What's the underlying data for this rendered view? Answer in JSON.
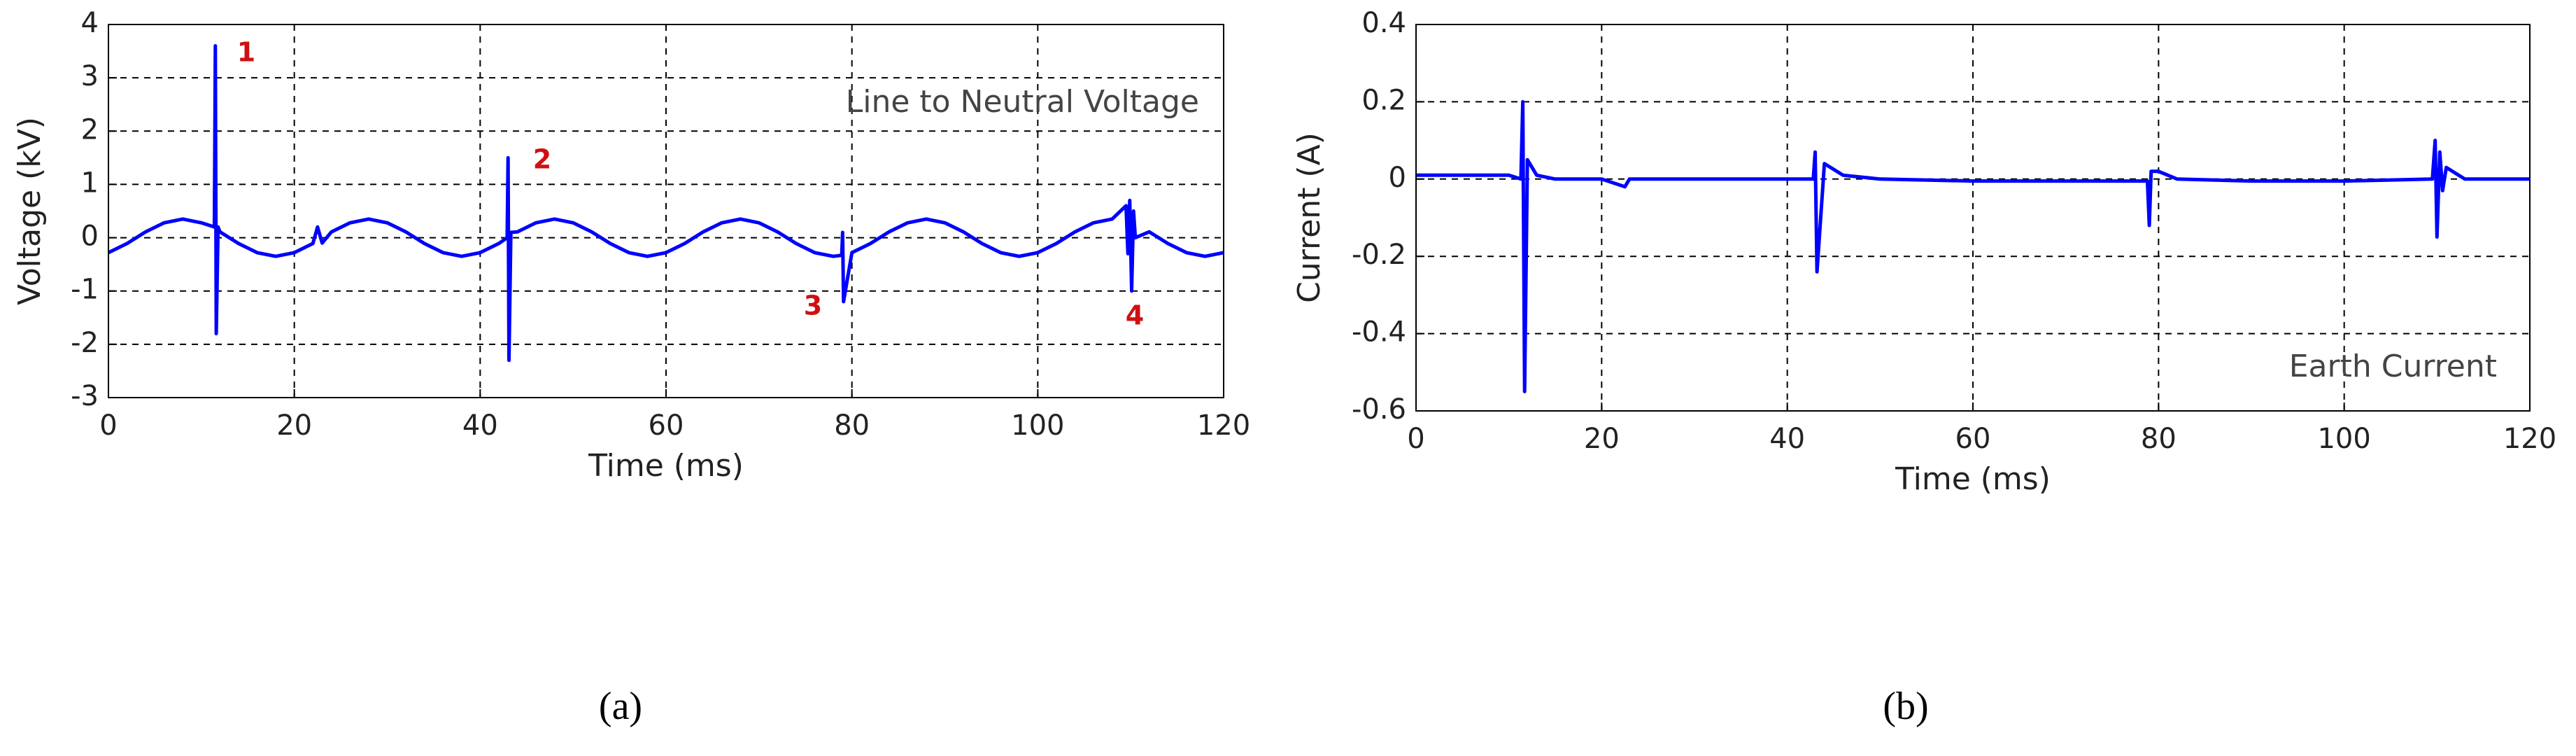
{
  "chart_data": [
    {
      "type": "line",
      "xlabel": "Time (ms)",
      "ylabel": "Voltage (kV)",
      "inset_text": "Line to Neutral Voltage",
      "annotations": [
        "1",
        "2",
        "3",
        "4"
      ],
      "caption": "(a)",
      "color": "#0000ff",
      "grid": true,
      "xlim": [
        0,
        120
      ],
      "ylim": [
        -3,
        4
      ],
      "xticks": [
        0,
        20,
        40,
        60,
        80,
        100,
        120
      ],
      "yticks": [
        -3,
        -2,
        -1,
        0,
        1,
        2,
        3,
        4
      ],
      "x": [
        0,
        2,
        4,
        6,
        8,
        10,
        11.4,
        11.5,
        11.6,
        11.8,
        12,
        14,
        16,
        18,
        20,
        22,
        22.5,
        23,
        24,
        26,
        28,
        30,
        32,
        34,
        36,
        38,
        40,
        42,
        42.9,
        43,
        43.1,
        43.3,
        44,
        46,
        48,
        50,
        52,
        54,
        56,
        58,
        60,
        62,
        64,
        66,
        68,
        70,
        72,
        74,
        76,
        78,
        78.9,
        79,
        79.1,
        80,
        82,
        84,
        86,
        88,
        90,
        92,
        94,
        96,
        98,
        100,
        102,
        104,
        106,
        108,
        109.5,
        109.7,
        109.9,
        110.1,
        110.3,
        110.5,
        112,
        114,
        116,
        118,
        120
      ],
      "values": [
        -0.28,
        -0.11,
        0.11,
        0.28,
        0.35,
        0.28,
        0.2,
        3.6,
        -1.8,
        0.2,
        0.11,
        -0.11,
        -0.28,
        -0.35,
        -0.28,
        -0.11,
        0.2,
        -0.1,
        0.11,
        0.28,
        0.35,
        0.28,
        0.11,
        -0.11,
        -0.28,
        -0.35,
        -0.28,
        -0.11,
        0.0,
        1.5,
        -2.3,
        0.1,
        0.11,
        0.28,
        0.35,
        0.28,
        0.11,
        -0.11,
        -0.28,
        -0.35,
        -0.28,
        -0.11,
        0.11,
        0.28,
        0.35,
        0.28,
        0.11,
        -0.11,
        -0.28,
        -0.35,
        -0.33,
        0.1,
        -1.2,
        -0.28,
        -0.11,
        0.11,
        0.28,
        0.35,
        0.28,
        0.11,
        -0.11,
        -0.28,
        -0.35,
        -0.28,
        -0.11,
        0.11,
        0.28,
        0.35,
        0.6,
        -0.3,
        0.7,
        -1.0,
        0.5,
        0.0,
        0.11,
        -0.11,
        -0.28,
        -0.35,
        -0.28
      ]
    },
    {
      "type": "line",
      "xlabel": "Time (ms)",
      "ylabel": "Current (A)",
      "inset_text": "Earth Current",
      "caption": "(b)",
      "color": "#0000ff",
      "grid": true,
      "xlim": [
        0,
        120
      ],
      "ylim": [
        -0.6,
        0.4
      ],
      "xticks": [
        0,
        20,
        40,
        60,
        80,
        100,
        120
      ],
      "yticks": [
        -0.6,
        -0.4,
        -0.2,
        0,
        0.2,
        0.4
      ],
      "x": [
        0,
        5,
        10,
        11.3,
        11.5,
        11.7,
        12,
        12.5,
        13,
        15,
        20,
        22.5,
        23,
        25,
        30,
        35,
        40,
        42.8,
        43,
        43.2,
        44,
        46,
        50,
        60,
        70,
        78.8,
        79,
        79.2,
        80,
        82,
        90,
        100,
        109.5,
        109.8,
        110,
        110.3,
        110.6,
        111,
        113,
        120
      ],
      "values": [
        0.01,
        0.01,
        0.01,
        0.0,
        0.2,
        -0.55,
        0.05,
        0.03,
        0.01,
        0.0,
        0.0,
        -0.02,
        0.0,
        0.0,
        0.0,
        0.0,
        0.0,
        0.0,
        0.07,
        -0.24,
        0.04,
        0.01,
        0.0,
        -0.005,
        -0.005,
        -0.005,
        -0.12,
        0.02,
        0.02,
        0.0,
        -0.005,
        -0.005,
        0.0,
        0.1,
        -0.15,
        0.07,
        -0.03,
        0.03,
        0.0,
        0.0
      ]
    }
  ]
}
